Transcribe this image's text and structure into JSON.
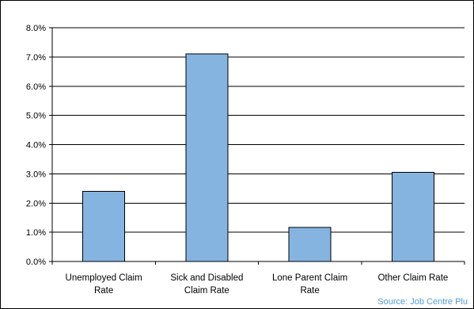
{
  "chart_data": {
    "type": "bar",
    "categories": [
      [
        "Unemployed Claim",
        "Rate"
      ],
      [
        "Sick and Disabled",
        "Claim Rate"
      ],
      [
        "Lone Parent Claim",
        "Rate"
      ],
      [
        "Other Claim Rate"
      ]
    ],
    "values": [
      2.4,
      7.1,
      1.17,
      3.05
    ],
    "yticks": [
      "0.0%",
      "1.0%",
      "2.0%",
      "3.0%",
      "4.0%",
      "5.0%",
      "6.0%",
      "7.0%",
      "8.0%"
    ],
    "ylim": [
      0,
      8
    ],
    "unit": "%",
    "grid": true,
    "bar_color": "#85b4e0",
    "title": "",
    "xlabel": "",
    "ylabel": ""
  },
  "source_note": "Source: Job Centre Plu"
}
